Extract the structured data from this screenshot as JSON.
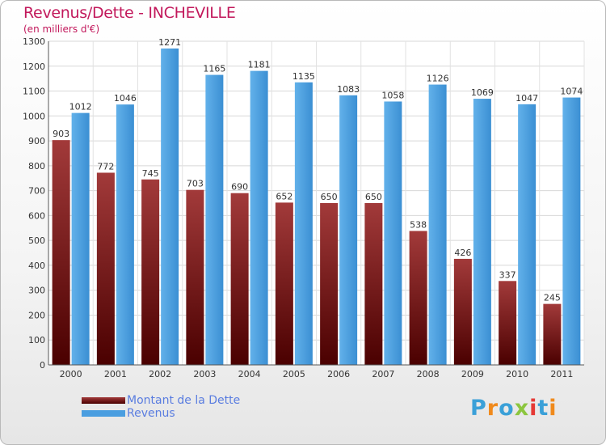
{
  "chart_data": {
    "type": "bar",
    "title": "Revenus/Dette - INCHEVILLE",
    "subtitle": "(en milliers d'€)",
    "categories": [
      "2000",
      "2001",
      "2002",
      "2003",
      "2004",
      "2005",
      "2006",
      "2007",
      "2008",
      "2009",
      "2010",
      "2011"
    ],
    "series": [
      {
        "name": "Montant de la Dette",
        "color": "#7a1a1a",
        "values": [
          903,
          772,
          745,
          703,
          690,
          652,
          650,
          650,
          538,
          426,
          337,
          245
        ]
      },
      {
        "name": "Revenus",
        "color": "#4a9ee0",
        "values": [
          1012,
          1046,
          1271,
          1165,
          1181,
          1135,
          1083,
          1058,
          1126,
          1069,
          1047,
          1074
        ]
      }
    ],
    "ylim": [
      0,
      1300
    ],
    "yticks": [
      0,
      100,
      200,
      300,
      400,
      500,
      600,
      700,
      800,
      900,
      1000,
      1100,
      1200,
      1300
    ],
    "grid": true,
    "legend_position": "bottom-left"
  },
  "logo": {
    "letters": [
      "P",
      "r",
      "o",
      "x",
      "i",
      "t",
      "i"
    ]
  }
}
